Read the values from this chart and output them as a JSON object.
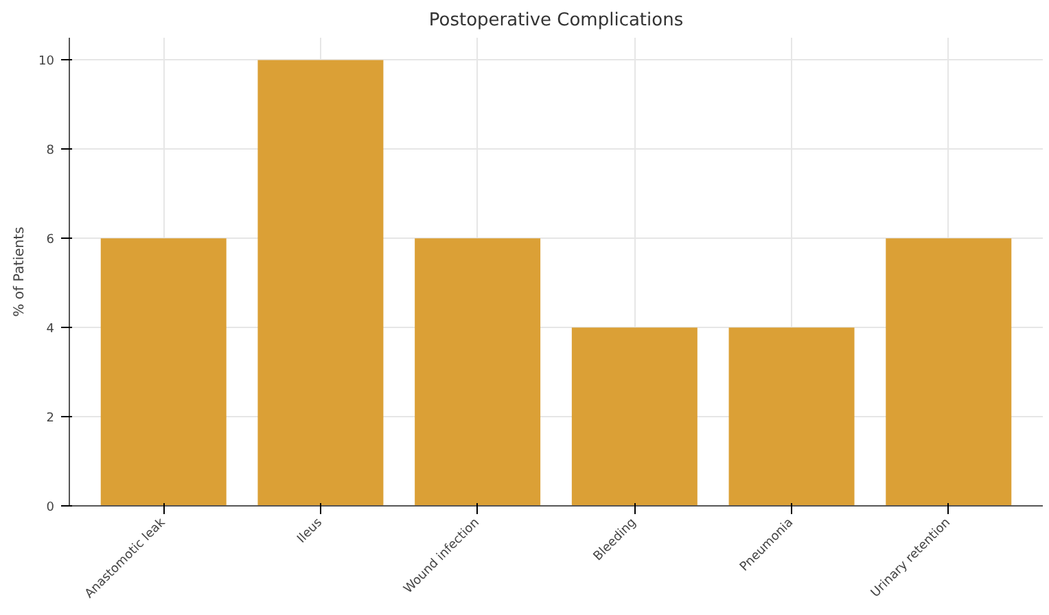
{
  "chart_data": {
    "type": "bar",
    "title": "Postoperative Complications",
    "ylabel": "% of Patients",
    "categories": [
      "Anastomotic leak",
      "Ileus",
      "Wound infection",
      "Bleeding",
      "Pneumonia",
      "Urinary retention"
    ],
    "values": [
      6,
      10,
      6,
      4,
      4,
      6
    ],
    "color": "#dba036",
    "ylim": [
      0,
      10.5
    ],
    "yticks": [
      0,
      2,
      4,
      6,
      8,
      10
    ],
    "grid": true
  }
}
